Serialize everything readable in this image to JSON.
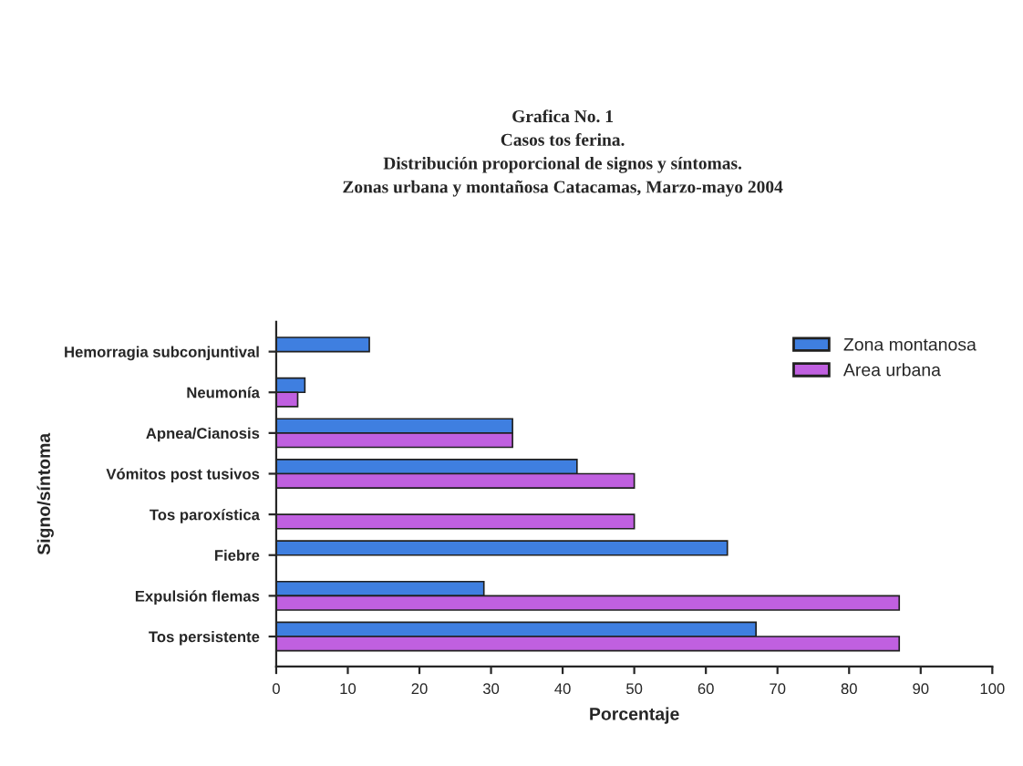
{
  "chart_data": {
    "type": "bar",
    "orientation": "horizontal",
    "title": "Grafica No. 1\nCasos tos ferina.\nDistribución proporcional de signos y síntomas.\nZonas urbana y montañosa Catacamas, Marzo-mayo 2004",
    "xlabel": "Porcentaje",
    "ylabel": "Signo/síntoma",
    "categories": [
      "Hemorragia subconjuntival",
      "Neumonía",
      "Apnea/Cianosis",
      "Vómitos post tusivos",
      "Tos paroxística",
      "Fiebre",
      "Expulsión flemas",
      "Tos persistente"
    ],
    "series": [
      {
        "name": "Zona montanosa",
        "color": "#3f7fe0",
        "values": [
          13,
          4,
          33,
          42,
          null,
          63,
          29,
          67
        ]
      },
      {
        "name": "Area urbana",
        "color": "#c060e0",
        "values": [
          null,
          3,
          33,
          50,
          50,
          null,
          87,
          87
        ]
      }
    ],
    "xlim": [
      0,
      100
    ],
    "xticks": [
      0,
      10,
      20,
      30,
      40,
      50,
      60,
      70,
      80,
      90,
      100
    ],
    "legend": "top right",
    "grid": false
  }
}
